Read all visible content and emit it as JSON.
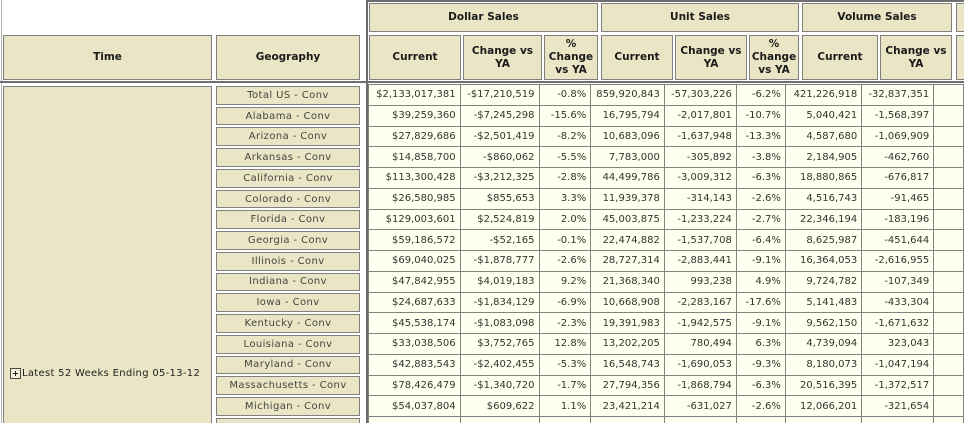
{
  "report": {
    "axis_headers": {
      "time": "Time",
      "geography": "Geography"
    },
    "groups": [
      {
        "label": "Dollar Sales"
      },
      {
        "label": "Unit Sales"
      },
      {
        "label": "Volume Sales"
      }
    ],
    "columns": [
      {
        "label": "Current"
      },
      {
        "label": "Change vs YA"
      },
      {
        "label": "% Change vs YA"
      },
      {
        "label": "Current"
      },
      {
        "label": "Change vs YA"
      },
      {
        "label": "% Change vs YA"
      },
      {
        "label": "Current"
      },
      {
        "label": "Change vs YA"
      }
    ],
    "time_row": {
      "label": "Latest 52 Weeks Ending 05-13-12",
      "expand_icon": "plus-expand-icon",
      "expanded": false
    },
    "rows": [
      {
        "geography": "Total US - Conv",
        "cells": [
          "$2,133,017,381",
          "-$17,210,519",
          "-0.8%",
          "859,920,843",
          "-57,303,226",
          "-6.2%",
          "421,226,918",
          "-32,837,351"
        ]
      },
      {
        "geography": "Alabama - Conv",
        "cells": [
          "$39,259,360",
          "-$7,245,298",
          "-15.6%",
          "16,795,794",
          "-2,017,801",
          "-10.7%",
          "5,040,421",
          "-1,568,397"
        ]
      },
      {
        "geography": "Arizona - Conv",
        "cells": [
          "$27,829,686",
          "-$2,501,419",
          "-8.2%",
          "10,683,096",
          "-1,637,948",
          "-13.3%",
          "4,587,680",
          "-1,069,909"
        ]
      },
      {
        "geography": "Arkansas - Conv",
        "cells": [
          "$14,858,700",
          "-$860,062",
          "-5.5%",
          "7,783,000",
          "-305,892",
          "-3.8%",
          "2,184,905",
          "-462,760"
        ]
      },
      {
        "geography": "California - Conv",
        "cells": [
          "$113,300,428",
          "-$3,212,325",
          "-2.8%",
          "44,499,786",
          "-3,009,312",
          "-6.3%",
          "18,880,865",
          "-676,817"
        ]
      },
      {
        "geography": "Colorado - Conv",
        "cells": [
          "$26,580,985",
          "$855,653",
          "3.3%",
          "11,939,378",
          "-314,143",
          "-2.6%",
          "4,516,743",
          "-91,465"
        ]
      },
      {
        "geography": "Florida - Conv",
        "cells": [
          "$129,003,601",
          "$2,524,819",
          "2.0%",
          "45,003,875",
          "-1,233,224",
          "-2.7%",
          "22,346,194",
          "-183,196"
        ]
      },
      {
        "geography": "Georgia - Conv",
        "cells": [
          "$59,186,572",
          "-$52,165",
          "-0.1%",
          "22,474,882",
          "-1,537,708",
          "-6.4%",
          "8,625,987",
          "-451,644"
        ]
      },
      {
        "geography": "Illinois - Conv",
        "cells": [
          "$69,040,025",
          "-$1,878,777",
          "-2.6%",
          "28,727,314",
          "-2,883,441",
          "-9.1%",
          "16,364,053",
          "-2,616,955"
        ]
      },
      {
        "geography": "Indiana - Conv",
        "cells": [
          "$47,842,955",
          "$4,019,183",
          "9.2%",
          "21,368,340",
          "993,238",
          "4.9%",
          "9,724,782",
          "-107,349"
        ]
      },
      {
        "geography": "Iowa - Conv",
        "cells": [
          "$24,687,633",
          "-$1,834,129",
          "-6.9%",
          "10,668,908",
          "-2,283,167",
          "-17.6%",
          "5,141,483",
          "-433,304"
        ]
      },
      {
        "geography": "Kentucky - Conv",
        "cells": [
          "$45,538,174",
          "-$1,083,098",
          "-2.3%",
          "19,391,983",
          "-1,942,575",
          "-9.1%",
          "9,562,150",
          "-1,671,632"
        ]
      },
      {
        "geography": "Louisiana - Conv",
        "cells": [
          "$33,038,506",
          "$3,752,765",
          "12.8%",
          "13,202,205",
          "780,494",
          "6.3%",
          "4,739,094",
          "323,043"
        ]
      },
      {
        "geography": "Maryland - Conv",
        "cells": [
          "$42,883,543",
          "-$2,402,455",
          "-5.3%",
          "16,548,743",
          "-1,690,053",
          "-9.3%",
          "8,180,073",
          "-1,047,194"
        ]
      },
      {
        "geography": "Massachusetts - Conv",
        "cells": [
          "$78,426,479",
          "-$1,340,720",
          "-1.7%",
          "27,794,356",
          "-1,868,794",
          "-6.3%",
          "20,516,395",
          "-1,372,517"
        ]
      },
      {
        "geography": "Michigan - Conv",
        "cells": [
          "$54,037,804",
          "$609,622",
          "1.1%",
          "23,421,214",
          "-631,027",
          "-2.6%",
          "12,066,201",
          "-321,654"
        ]
      }
    ],
    "colors": {
      "header_bg": "#e9e5c5",
      "data_cell_bg": "#fffff0",
      "grid_border": "#808080",
      "section_border": "#6e6e6e"
    }
  }
}
